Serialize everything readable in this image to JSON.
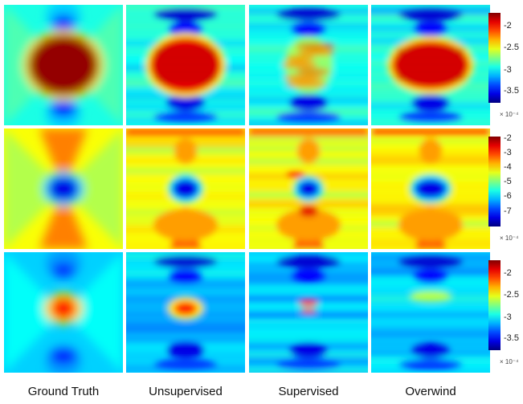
{
  "columns": [
    "Ground Truth",
    "Unsupervised",
    "Supervised",
    "Overwind"
  ],
  "rows": [
    {
      "ticks": [
        "-2",
        "-2.5",
        "-3",
        "-3.5"
      ],
      "tick_fraction": [
        0.14,
        0.38,
        0.63,
        0.87
      ],
      "multiplier": "× 10⁻⁴"
    },
    {
      "ticks": [
        "-2",
        "-3",
        "-4",
        "-5",
        "-6",
        "-7"
      ],
      "tick_fraction": [
        0.02,
        0.18,
        0.34,
        0.5,
        0.66,
        0.83
      ],
      "multiplier": "× 10⁻⁴"
    },
    {
      "ticks": [
        "-2",
        "-2.5",
        "-3",
        "-3.5"
      ],
      "tick_fraction": [
        0.14,
        0.38,
        0.63,
        0.87
      ],
      "multiplier": "× 10⁻⁴"
    }
  ],
  "colormap": "jet"
}
